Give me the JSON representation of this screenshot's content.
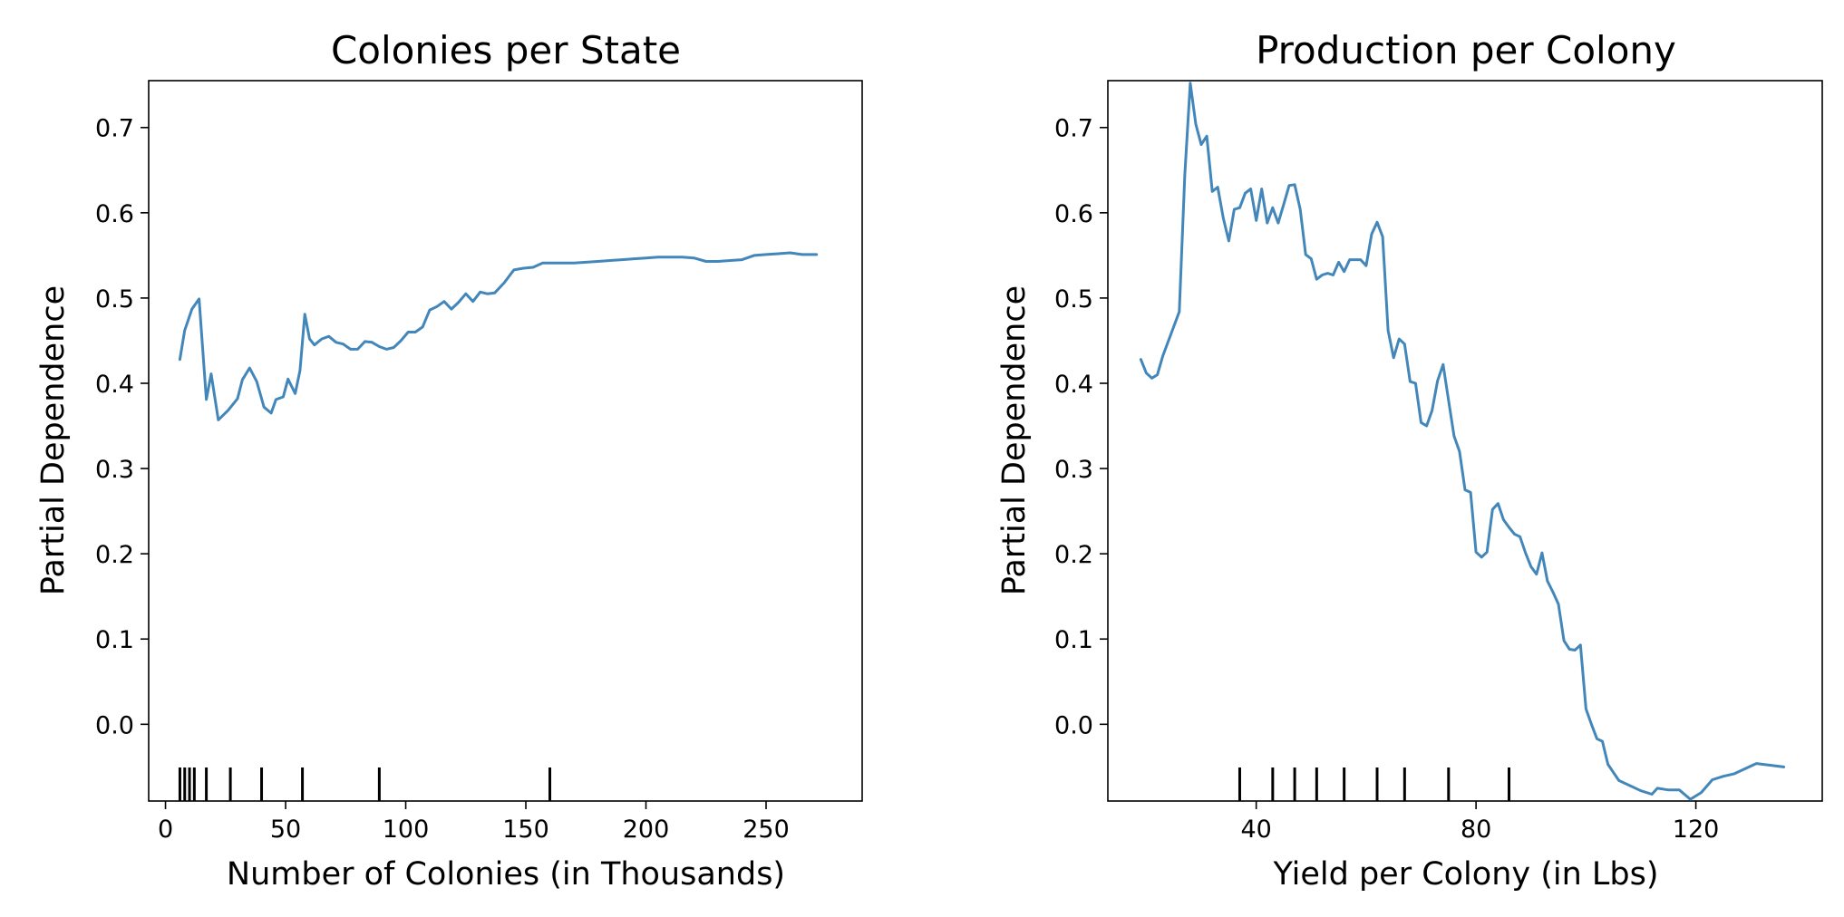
{
  "chart_data": [
    {
      "type": "line",
      "title": "Colonies per State",
      "xlabel": "Number of Colonies (in Thousands)",
      "ylabel": "Partial Dependence",
      "xlim": [
        -7,
        290
      ],
      "ylim": [
        -0.09,
        0.755
      ],
      "xticks": [
        0,
        50,
        100,
        150,
        200,
        250
      ],
      "yticks": [
        0.0,
        0.1,
        0.2,
        0.3,
        0.4,
        0.5,
        0.6,
        0.7
      ],
      "grid": false,
      "line_color": "#4387ba",
      "series": [
        {
          "x": [
            6,
            8,
            11,
            14,
            17,
            19,
            22,
            26,
            30,
            32,
            35,
            38,
            41,
            44,
            46,
            49,
            51,
            54,
            56,
            58,
            60,
            62,
            65,
            68,
            71,
            74,
            77,
            80,
            83,
            86,
            89,
            92,
            95,
            98,
            101,
            104,
            107,
            110,
            113,
            116,
            119,
            122,
            125,
            128,
            131,
            134,
            137,
            141,
            145,
            149,
            153,
            157,
            161,
            165,
            170,
            175,
            180,
            185,
            190,
            195,
            200,
            205,
            210,
            215,
            220,
            225,
            230,
            235,
            240,
            245,
            250,
            255,
            260,
            265,
            271
          ],
          "y": [
            0.428,
            0.462,
            0.487,
            0.499,
            0.381,
            0.411,
            0.357,
            0.368,
            0.382,
            0.404,
            0.418,
            0.402,
            0.372,
            0.365,
            0.381,
            0.384,
            0.405,
            0.388,
            0.415,
            0.481,
            0.452,
            0.445,
            0.452,
            0.455,
            0.448,
            0.446,
            0.44,
            0.44,
            0.449,
            0.448,
            0.443,
            0.44,
            0.442,
            0.45,
            0.46,
            0.46,
            0.466,
            0.486,
            0.49,
            0.496,
            0.487,
            0.495,
            0.505,
            0.496,
            0.507,
            0.505,
            0.506,
            0.518,
            0.533,
            0.535,
            0.536,
            0.541,
            0.541,
            0.541,
            0.541,
            0.542,
            0.543,
            0.544,
            0.545,
            0.546,
            0.547,
            0.548,
            0.548,
            0.548,
            0.547,
            0.543,
            0.543,
            0.544,
            0.545,
            0.55,
            0.551,
            0.552,
            0.553,
            0.551,
            0.551
          ]
        }
      ],
      "rug": [
        6,
        8,
        10,
        12,
        17,
        27,
        40,
        57,
        89,
        160
      ]
    },
    {
      "type": "line",
      "title": "Production per Colony",
      "xlabel": "Yield per Colony (in Lbs)",
      "ylabel": "Partial Dependence",
      "xlim": [
        13,
        143
      ],
      "ylim": [
        -0.09,
        0.755
      ],
      "xticks": [
        40,
        80,
        120
      ],
      "yticks": [
        0.0,
        0.1,
        0.2,
        0.3,
        0.4,
        0.5,
        0.6,
        0.7
      ],
      "grid": false,
      "line_color": "#4387ba",
      "series": [
        {
          "x": [
            19,
            20,
            21,
            22,
            23,
            26,
            27,
            28,
            29,
            30,
            31,
            32,
            33,
            34,
            35,
            36,
            37,
            38,
            39,
            40,
            41,
            42,
            43,
            44,
            45,
            46,
            47,
            48,
            49,
            50,
            51,
            52,
            53,
            54,
            55,
            56,
            57,
            58,
            59,
            60,
            61,
            62,
            63,
            64,
            65,
            66,
            67,
            68,
            69,
            70,
            71,
            72,
            73,
            74,
            75,
            76,
            77,
            78,
            79,
            80,
            81,
            82,
            83,
            84,
            85,
            86,
            87,
            88,
            89,
            90,
            91,
            92,
            93,
            94,
            95,
            96,
            97,
            98,
            99,
            100,
            101,
            102,
            103,
            104,
            106,
            110,
            112,
            113,
            114,
            115,
            117,
            119,
            121,
            123,
            125,
            127,
            131,
            136
          ],
          "y": [
            0.428,
            0.412,
            0.406,
            0.41,
            0.432,
            0.484,
            0.645,
            0.752,
            0.704,
            0.68,
            0.69,
            0.625,
            0.63,
            0.594,
            0.567,
            0.604,
            0.606,
            0.623,
            0.628,
            0.591,
            0.628,
            0.588,
            0.606,
            0.588,
            0.61,
            0.632,
            0.633,
            0.604,
            0.551,
            0.546,
            0.522,
            0.527,
            0.529,
            0.527,
            0.542,
            0.531,
            0.545,
            0.545,
            0.545,
            0.538,
            0.575,
            0.589,
            0.572,
            0.462,
            0.43,
            0.452,
            0.446,
            0.402,
            0.4,
            0.354,
            0.35,
            0.368,
            0.403,
            0.422,
            0.38,
            0.338,
            0.32,
            0.275,
            0.272,
            0.202,
            0.196,
            0.202,
            0.252,
            0.259,
            0.24,
            0.231,
            0.223,
            0.22,
            0.201,
            0.185,
            0.176,
            0.201,
            0.168,
            0.155,
            0.141,
            0.098,
            0.088,
            0.087,
            0.093,
            0.018,
            0.0,
            -0.017,
            -0.02,
            -0.047,
            -0.066,
            -0.078,
            -0.082,
            -0.075,
            -0.076,
            -0.077,
            -0.077,
            -0.088,
            -0.08,
            -0.065,
            -0.061,
            -0.058,
            -0.046,
            -0.05
          ]
        }
      ],
      "rug": [
        37,
        43,
        47,
        51,
        56,
        62,
        67,
        75,
        86
      ]
    }
  ]
}
